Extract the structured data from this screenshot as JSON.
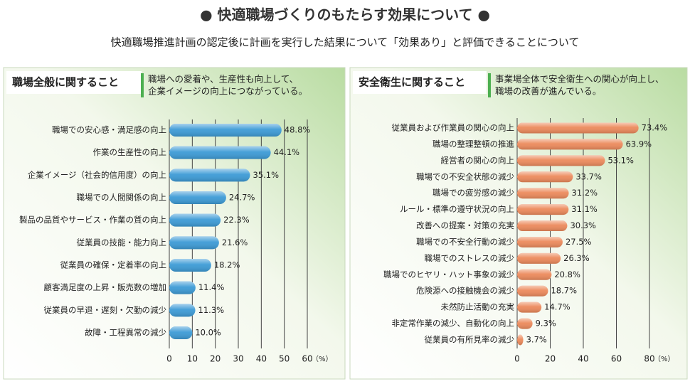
{
  "header": {
    "title": "● 快適職場づくりのもたらす効果について ●",
    "subtitle": "快適職場推進計画の認定後に計画を実行した結果について「効果あり」と評価できることについて"
  },
  "chart_data": [
    {
      "type": "bar",
      "orientation": "horizontal",
      "title": "職場全般に関すること",
      "description": [
        "職場への愛着や、生産性も向上して、",
        "企業イメージの向上につながっている。"
      ],
      "categories": [
        "職場での安心感・満足感の向上",
        "作業の生産性の向上",
        "企業イメージ（社会的信用度）の向上",
        "職場での人間関係の向上",
        "製品の品質やサービス・作業の質の向上",
        "従業員の技能・能力向上",
        "従業員の確保・定着率の向上",
        "顧客満足度の上昇・販売数の増加",
        "従業員の早退・遅刻・欠勤の減少",
        "故障・工程異常の減少"
      ],
      "values": [
        48.8,
        44.1,
        35.1,
        24.7,
        22.3,
        21.6,
        18.2,
        11.4,
        11.3,
        10.0
      ],
      "value_labels": [
        "48.8%",
        "44.1%",
        "35.1%",
        "24.7%",
        "22.3%",
        "21.6%",
        "18.2%",
        "11.4%",
        "11.3%",
        "10.0%"
      ],
      "color": "#3d9bd6",
      "xlim": [
        0,
        60
      ],
      "xticks": [
        0,
        10,
        20,
        30,
        40,
        50,
        60
      ],
      "unit_label": "（%）",
      "grid": true
    },
    {
      "type": "bar",
      "orientation": "horizontal",
      "title": "安全衛生に関すること",
      "description": [
        "事業場全体で安全衛生への関心が向上し、",
        "職場の改善が進んでいる。"
      ],
      "categories": [
        "従業員および作業員の関心の向上",
        "職場の整理整頓の推進",
        "経営者の関心の向上",
        "職場での不安全状態の減少",
        "職場での疲労感の減少",
        "ルール・標準の遵守状況の向上",
        "改善への提案・対策の充実",
        "職場での不安全行動の減少",
        "職場でのストレスの減少",
        "職場でのヒヤリ・ハット事象の減少",
        "危険源への接触機会の減少",
        "未然防止活動の充実",
        "非定常作業の減少、自動化の向上",
        "従業員の有所見率の減少"
      ],
      "values": [
        73.4,
        63.9,
        53.1,
        33.7,
        31.2,
        31.1,
        30.3,
        27.5,
        26.3,
        20.8,
        18.7,
        14.7,
        9.3,
        3.7
      ],
      "value_labels": [
        "73.4%",
        "63.9%",
        "53.1%",
        "33.7%",
        "31.2%",
        "31.1%",
        "30.3%",
        "27.5%",
        "26.3%",
        "20.8%",
        "18.7%",
        "14.7%",
        "9.3%",
        "3.7%"
      ],
      "color": "#ec8a5c",
      "xlim": [
        0,
        80
      ],
      "xticks": [
        0,
        20,
        40,
        60,
        80
      ],
      "unit_label": "（%）",
      "grid": true
    }
  ]
}
